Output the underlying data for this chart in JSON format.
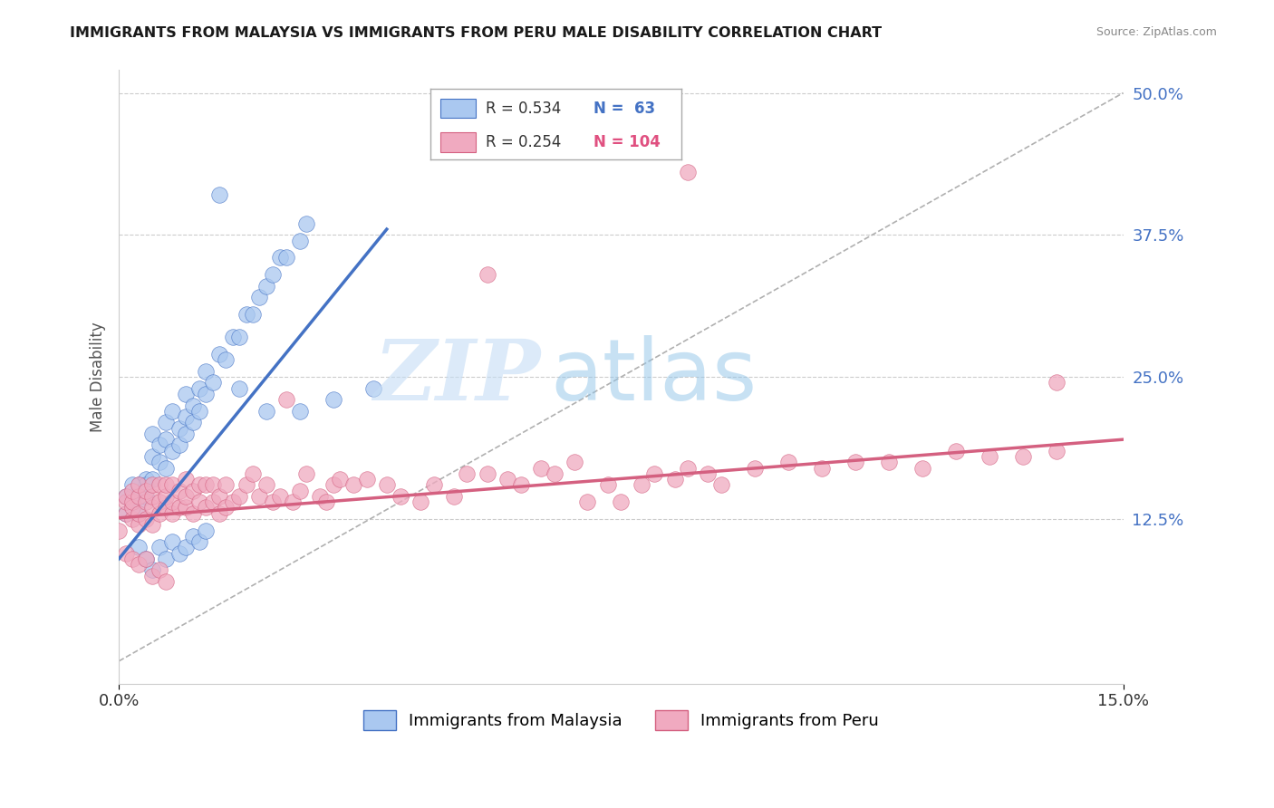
{
  "title": "IMMIGRANTS FROM MALAYSIA VS IMMIGRANTS FROM PERU MALE DISABILITY CORRELATION CHART",
  "source": "Source: ZipAtlas.com",
  "ylabel": "Male Disability",
  "xlim": [
    0.0,
    0.15
  ],
  "ylim": [
    -0.02,
    0.52
  ],
  "plot_ylim": [
    0.0,
    0.5
  ],
  "xticks": [
    0.0,
    0.15
  ],
  "xtick_labels": [
    "0.0%",
    "15.0%"
  ],
  "ytick_labels_right": [
    "12.5%",
    "25.0%",
    "37.5%",
    "50.0%"
  ],
  "ytick_vals_right": [
    0.125,
    0.25,
    0.375,
    0.5
  ],
  "legend_r1": "R = 0.534",
  "legend_n1": "N =  63",
  "legend_r2": "R = 0.254",
  "legend_n2": "N = 104",
  "color_malaysia": "#aac8f0",
  "color_peru": "#f0aac0",
  "color_line_malaysia": "#4472c4",
  "color_line_peru": "#d46080",
  "color_dashed": "#b0b0b0",
  "watermark_zip": "ZIP",
  "watermark_atlas": "atlas",
  "legend_label_malaysia": "Immigrants from Malaysia",
  "legend_label_peru": "Immigrants from Peru",
  "background_color": "#ffffff",
  "grid_color": "#cccccc",
  "malaysia_x": [
    0.003,
    0.003,
    0.004,
    0.004,
    0.004,
    0.005,
    0.005,
    0.005,
    0.006,
    0.006,
    0.007,
    0.007,
    0.007,
    0.008,
    0.008,
    0.009,
    0.009,
    0.01,
    0.01,
    0.01,
    0.011,
    0.011,
    0.012,
    0.012,
    0.013,
    0.013,
    0.014,
    0.015,
    0.016,
    0.017,
    0.018,
    0.019,
    0.02,
    0.021,
    0.022,
    0.023,
    0.024,
    0.025,
    0.027,
    0.028,
    0.001,
    0.001,
    0.002,
    0.002,
    0.002,
    0.003,
    0.003,
    0.004,
    0.005,
    0.006,
    0.007,
    0.008,
    0.009,
    0.01,
    0.011,
    0.012,
    0.013,
    0.015,
    0.018,
    0.022,
    0.027,
    0.032,
    0.038
  ],
  "malaysia_y": [
    0.155,
    0.14,
    0.145,
    0.16,
    0.155,
    0.16,
    0.18,
    0.2,
    0.175,
    0.19,
    0.17,
    0.195,
    0.21,
    0.185,
    0.22,
    0.19,
    0.205,
    0.2,
    0.215,
    0.235,
    0.21,
    0.225,
    0.22,
    0.24,
    0.235,
    0.255,
    0.245,
    0.27,
    0.265,
    0.285,
    0.285,
    0.305,
    0.305,
    0.32,
    0.33,
    0.34,
    0.355,
    0.355,
    0.37,
    0.385,
    0.145,
    0.13,
    0.135,
    0.145,
    0.155,
    0.1,
    0.13,
    0.09,
    0.08,
    0.1,
    0.09,
    0.105,
    0.095,
    0.1,
    0.11,
    0.105,
    0.115,
    0.41,
    0.24,
    0.22,
    0.22,
    0.23,
    0.24
  ],
  "peru_x": [
    0.001,
    0.001,
    0.001,
    0.002,
    0.002,
    0.002,
    0.002,
    0.003,
    0.003,
    0.003,
    0.003,
    0.004,
    0.004,
    0.004,
    0.005,
    0.005,
    0.005,
    0.005,
    0.006,
    0.006,
    0.006,
    0.007,
    0.007,
    0.007,
    0.008,
    0.008,
    0.008,
    0.009,
    0.009,
    0.01,
    0.01,
    0.01,
    0.011,
    0.011,
    0.012,
    0.012,
    0.013,
    0.013,
    0.014,
    0.014,
    0.015,
    0.015,
    0.016,
    0.016,
    0.017,
    0.018,
    0.019,
    0.02,
    0.021,
    0.022,
    0.023,
    0.024,
    0.025,
    0.026,
    0.027,
    0.028,
    0.03,
    0.031,
    0.032,
    0.033,
    0.035,
    0.037,
    0.04,
    0.042,
    0.045,
    0.047,
    0.05,
    0.052,
    0.055,
    0.058,
    0.06,
    0.063,
    0.065,
    0.068,
    0.07,
    0.073,
    0.075,
    0.078,
    0.08,
    0.083,
    0.085,
    0.088,
    0.09,
    0.095,
    0.1,
    0.105,
    0.11,
    0.115,
    0.12,
    0.125,
    0.13,
    0.135,
    0.14,
    0.0,
    0.001,
    0.002,
    0.003,
    0.004,
    0.005,
    0.006,
    0.007,
    0.055,
    0.085,
    0.14
  ],
  "peru_y": [
    0.13,
    0.14,
    0.145,
    0.125,
    0.135,
    0.14,
    0.15,
    0.12,
    0.13,
    0.145,
    0.155,
    0.125,
    0.14,
    0.15,
    0.12,
    0.135,
    0.145,
    0.155,
    0.13,
    0.14,
    0.155,
    0.135,
    0.145,
    0.155,
    0.13,
    0.14,
    0.155,
    0.135,
    0.15,
    0.135,
    0.145,
    0.16,
    0.13,
    0.15,
    0.14,
    0.155,
    0.135,
    0.155,
    0.14,
    0.155,
    0.13,
    0.145,
    0.135,
    0.155,
    0.14,
    0.145,
    0.155,
    0.165,
    0.145,
    0.155,
    0.14,
    0.145,
    0.23,
    0.14,
    0.15,
    0.165,
    0.145,
    0.14,
    0.155,
    0.16,
    0.155,
    0.16,
    0.155,
    0.145,
    0.14,
    0.155,
    0.145,
    0.165,
    0.165,
    0.16,
    0.155,
    0.17,
    0.165,
    0.175,
    0.14,
    0.155,
    0.14,
    0.155,
    0.165,
    0.16,
    0.17,
    0.165,
    0.155,
    0.17,
    0.175,
    0.17,
    0.175,
    0.175,
    0.17,
    0.185,
    0.18,
    0.18,
    0.185,
    0.115,
    0.095,
    0.09,
    0.085,
    0.09,
    0.075,
    0.08,
    0.07,
    0.34,
    0.43,
    0.245
  ]
}
